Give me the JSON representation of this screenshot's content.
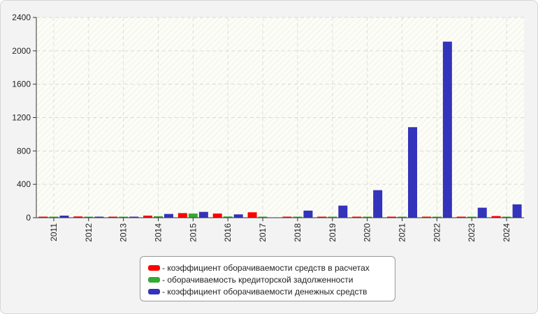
{
  "chart_data": {
    "type": "bar",
    "categories": [
      "2011",
      "2012",
      "2013",
      "2014",
      "2015",
      "2016",
      "2017",
      "2018",
      "2019",
      "2020",
      "2021",
      "2022",
      "2023",
      "2024"
    ],
    "series": [
      {
        "name": "- коэффициент оборачиваемости средств в расчетах",
        "color": "#ff0000",
        "values": [
          8,
          15,
          8,
          25,
          55,
          50,
          65,
          10,
          8,
          8,
          10,
          10,
          8,
          20
        ]
      },
      {
        "name": "- оборачиваемость кредиторской задолженности",
        "color": "#33aa33",
        "values": [
          5,
          3,
          3,
          18,
          50,
          15,
          5,
          5,
          5,
          5,
          5,
          5,
          5,
          5
        ]
      },
      {
        "name": "- коэффициент оборачиваемости денежных средств",
        "color": "#3333bb",
        "values": [
          25,
          10,
          10,
          45,
          70,
          40,
          0,
          85,
          145,
          330,
          1085,
          2110,
          120,
          160
        ]
      }
    ],
    "y_ticks": [
      "0",
      "400",
      "800",
      "1200",
      "1600",
      "2000",
      "2400"
    ],
    "ylim": [
      0,
      2400
    ],
    "grid": true,
    "legend_position": "bottom"
  }
}
